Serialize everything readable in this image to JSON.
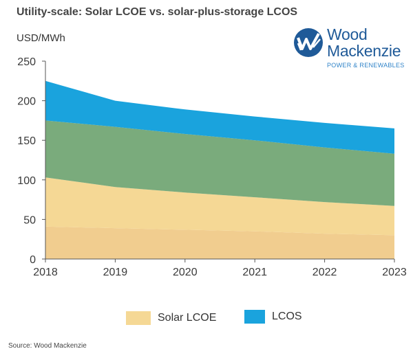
{
  "chart_data": {
    "type": "area",
    "title": "Utility-scale: Solar LCOE vs. solar-plus-storage LCOS",
    "ylabel": "USD/MWh",
    "x": [
      "2018",
      "2019",
      "2020",
      "2021",
      "2022",
      "2023"
    ],
    "ylim": [
      0,
      250
    ],
    "yticks": [
      "0",
      "50",
      "100",
      "150",
      "200",
      "250"
    ],
    "stacked_levels": [
      {
        "color": "#f1cd8f",
        "values": [
          41,
          39,
          37,
          35,
          32,
          30
        ]
      },
      {
        "color": "#f5d895",
        "values": [
          103,
          91,
          84,
          78,
          72,
          67
        ]
      },
      {
        "color": "#7aab7c",
        "values": [
          175,
          167,
          158,
          150,
          141,
          133
        ]
      },
      {
        "color": "#1aa3dd",
        "values": [
          225,
          200,
          189,
          180,
          172,
          165
        ]
      }
    ],
    "legend": [
      {
        "name": "Solar LCOE",
        "color": "#f5d895"
      },
      {
        "name": "LCOS",
        "color": "#1aa3dd"
      }
    ],
    "legend_position": "bottom",
    "grid": false
  },
  "logo": {
    "line1": "Wood",
    "line2": "Mackenzie",
    "line3": "POWER & RENEWABLES",
    "color": "#1f5a98"
  },
  "source": "Source: Wood Mackenzie"
}
